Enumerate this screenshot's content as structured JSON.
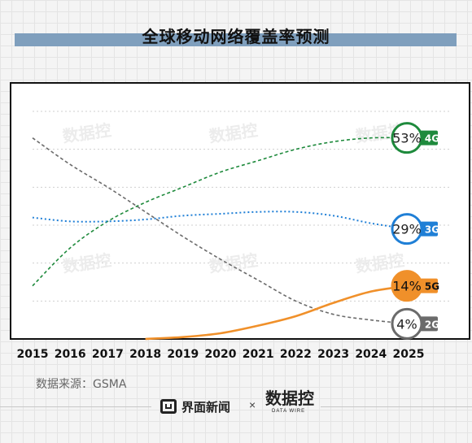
{
  "title": "全球移动网络覆盖率预测",
  "source": "数据来源：GSMA",
  "footer": {
    "brand": "界面新闻",
    "separator": "×",
    "datawire_logo": "数据控",
    "datawire_sub": "DATA WIRE"
  },
  "watermark_text": "数据控",
  "colors": {
    "4G": "#1e8a3c",
    "3G": "#1f7fd6",
    "2G": "#6b6b6b",
    "5G": "#f0902a",
    "title_bar": "#7f9fbd"
  },
  "chart_data": {
    "type": "line",
    "title": "全球移动网络覆盖率预测",
    "x": [
      "2015",
      "2016",
      "2017",
      "2018",
      "2019",
      "2020",
      "2021",
      "2022",
      "2023",
      "2024",
      "2025"
    ],
    "series": [
      {
        "name": "4G",
        "values": [
          14,
          24,
          31,
          36,
          40,
          44,
          47,
          50,
          52,
          53,
          53
        ],
        "end_label": "53%",
        "style": "dashed"
      },
      {
        "name": "3G",
        "values": [
          32,
          31,
          31,
          31.5,
          32.5,
          33,
          33.5,
          33.5,
          32.5,
          30.5,
          29
        ],
        "end_label": "29%",
        "style": "dotted"
      },
      {
        "name": "2G",
        "values": [
          53,
          46,
          40,
          33.5,
          27,
          21,
          15.5,
          10,
          6.5,
          5,
          4
        ],
        "end_label": "4%",
        "style": "dashed"
      },
      {
        "name": "5G",
        "values": [
          null,
          null,
          null,
          0,
          0.5,
          1.5,
          3.5,
          6,
          9.5,
          12.5,
          14
        ],
        "end_label": "14%",
        "style": "solid"
      }
    ],
    "ylim": [
      0,
      60
    ],
    "grid": true,
    "xlabel": "",
    "ylabel": ""
  }
}
